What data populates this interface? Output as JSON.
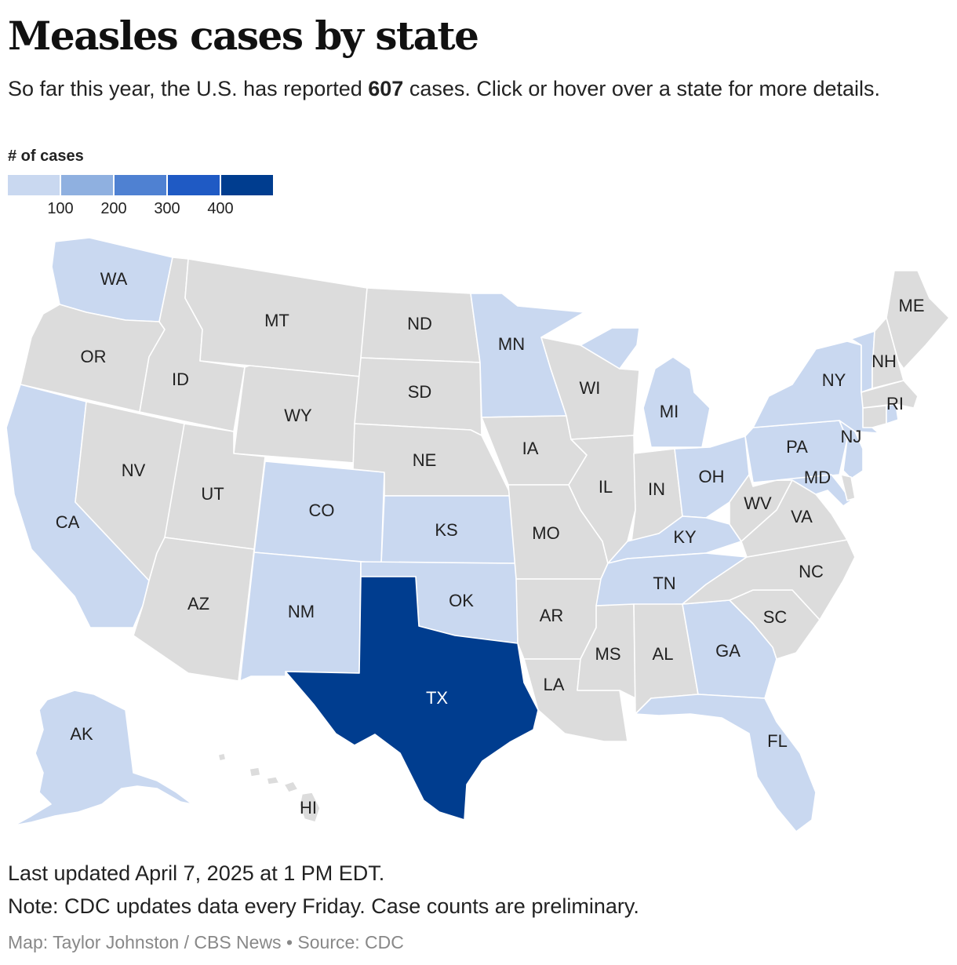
{
  "title": "Measles cases by state",
  "subtitle": {
    "before": "So far this year, the U.S. has reported ",
    "count": "607",
    "after": " cases. Click or hover over a state for more details."
  },
  "legend": {
    "title": "# of cases",
    "colors": [
      "#c9d8f0",
      "#8fb0e0",
      "#4f81d2",
      "#1f5ac4",
      "#003d8f"
    ],
    "ticks": [
      "100",
      "200",
      "300",
      "400"
    ]
  },
  "colors": {
    "none": "#dcdcdc",
    "low": "#c9d8f0",
    "top": "#003d8f"
  },
  "states": [
    {
      "abbr": "WA",
      "bin": 1
    },
    {
      "abbr": "OR",
      "bin": 0
    },
    {
      "abbr": "CA",
      "bin": 1
    },
    {
      "abbr": "ID",
      "bin": 0
    },
    {
      "abbr": "NV",
      "bin": 0
    },
    {
      "abbr": "MT",
      "bin": 0
    },
    {
      "abbr": "WY",
      "bin": 0
    },
    {
      "abbr": "UT",
      "bin": 0
    },
    {
      "abbr": "AZ",
      "bin": 0
    },
    {
      "abbr": "CO",
      "bin": 1
    },
    {
      "abbr": "NM",
      "bin": 1
    },
    {
      "abbr": "ND",
      "bin": 0
    },
    {
      "abbr": "SD",
      "bin": 0
    },
    {
      "abbr": "NE",
      "bin": 0
    },
    {
      "abbr": "KS",
      "bin": 1
    },
    {
      "abbr": "OK",
      "bin": 1
    },
    {
      "abbr": "TX",
      "bin": 5
    },
    {
      "abbr": "MN",
      "bin": 1
    },
    {
      "abbr": "IA",
      "bin": 0
    },
    {
      "abbr": "MO",
      "bin": 0
    },
    {
      "abbr": "AR",
      "bin": 0
    },
    {
      "abbr": "LA",
      "bin": 0
    },
    {
      "abbr": "WI",
      "bin": 0
    },
    {
      "abbr": "IL",
      "bin": 0
    },
    {
      "abbr": "MI",
      "bin": 1
    },
    {
      "abbr": "IN",
      "bin": 0
    },
    {
      "abbr": "OH",
      "bin": 1
    },
    {
      "abbr": "KY",
      "bin": 1
    },
    {
      "abbr": "TN",
      "bin": 1
    },
    {
      "abbr": "MS",
      "bin": 0
    },
    {
      "abbr": "AL",
      "bin": 0
    },
    {
      "abbr": "GA",
      "bin": 1
    },
    {
      "abbr": "FL",
      "bin": 1
    },
    {
      "abbr": "SC",
      "bin": 0
    },
    {
      "abbr": "NC",
      "bin": 0
    },
    {
      "abbr": "VA",
      "bin": 0
    },
    {
      "abbr": "WV",
      "bin": 0
    },
    {
      "abbr": "PA",
      "bin": 1
    },
    {
      "abbr": "NY",
      "bin": 1
    },
    {
      "abbr": "NJ",
      "bin": 1
    },
    {
      "abbr": "MD",
      "bin": 1
    },
    {
      "abbr": "DE",
      "bin": 0
    },
    {
      "abbr": "VT",
      "bin": 1
    },
    {
      "abbr": "NH",
      "bin": 0
    },
    {
      "abbr": "ME",
      "bin": 0
    },
    {
      "abbr": "MA",
      "bin": 0
    },
    {
      "abbr": "CT",
      "bin": 0
    },
    {
      "abbr": "RI",
      "bin": 1
    },
    {
      "abbr": "AK",
      "bin": 1
    },
    {
      "abbr": "HI",
      "bin": 0
    }
  ],
  "footer": {
    "updated": "Last updated April 7, 2025 at 1 PM EDT.",
    "note": "Note: CDC updates data every Friday. Case counts are preliminary.",
    "credit": "Map: Taylor Johnston / CBS News • Source: CDC"
  }
}
